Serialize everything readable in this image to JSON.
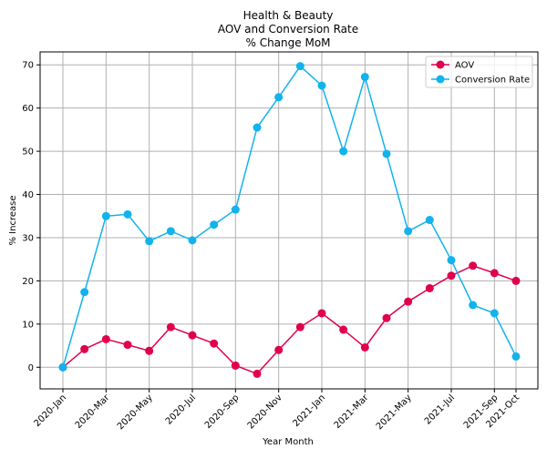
{
  "chart_data": {
    "type": "line",
    "title_lines": [
      "Health & Beauty",
      "AOV and Conversion Rate",
      "% Change MoM"
    ],
    "xlabel": "Year Month",
    "ylabel": "% Increase",
    "ylim": [
      -5,
      73
    ],
    "yticks": [
      0,
      10,
      20,
      30,
      40,
      50,
      60,
      70
    ],
    "grid": true,
    "legend_position": "top-right",
    "categories": [
      "2020-Jan",
      "2020-Feb",
      "2020-Mar",
      "2020-Apr",
      "2020-May",
      "2020-Jun",
      "2020-Jul",
      "2020-Aug",
      "2020-Sep",
      "2020-Oct",
      "2020-Nov",
      "2020-Dec",
      "2021-Jan",
      "2021-Feb",
      "2021-Mar",
      "2021-Apr",
      "2021-May",
      "2021-Jun",
      "2021-Jul",
      "2021-Aug",
      "2021-Sep",
      "2021-Oct"
    ],
    "xtick_labels": [
      {
        "index": 0,
        "label": "2020-Jan"
      },
      {
        "index": 2,
        "label": "2020-Mar"
      },
      {
        "index": 4,
        "label": "2020-May"
      },
      {
        "index": 6,
        "label": "2020-Jul"
      },
      {
        "index": 8,
        "label": "2020-Sep"
      },
      {
        "index": 10,
        "label": "2020-Nov"
      },
      {
        "index": 12,
        "label": "2021-Jan"
      },
      {
        "index": 14,
        "label": "2021-Mar"
      },
      {
        "index": 16,
        "label": "2021-May"
      },
      {
        "index": 18,
        "label": "2021-Jul"
      },
      {
        "index": 20,
        "label": "2021-Sep"
      },
      {
        "index": 21,
        "label": "2021-Oct"
      }
    ],
    "series": [
      {
        "name": "AOV",
        "color": "#e0004d",
        "values": [
          0,
          4.2,
          6.5,
          5.2,
          3.8,
          9.3,
          7.4,
          5.5,
          0.4,
          -1.5,
          4.0,
          9.3,
          12.5,
          8.7,
          4.6,
          11.4,
          15.2,
          18.3,
          21.2,
          23.5,
          21.8,
          20.0
        ]
      },
      {
        "name": "Conversion Rate",
        "color": "#12b3ec",
        "values": [
          0,
          17.4,
          35.0,
          35.4,
          29.2,
          31.5,
          29.4,
          33.0,
          36.5,
          55.5,
          62.5,
          69.7,
          65.2,
          50.0,
          67.2,
          49.4,
          31.5,
          34.1,
          24.8,
          14.4,
          12.5,
          2.5
        ]
      }
    ]
  }
}
